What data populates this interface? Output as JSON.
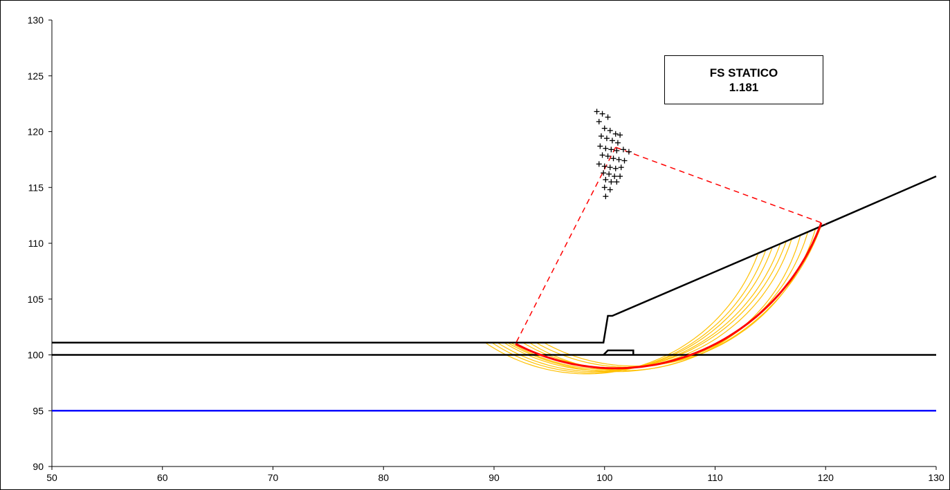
{
  "chart_data": {
    "type": "scatter",
    "title": "",
    "xlabel": "",
    "ylabel": "",
    "xlim": [
      50,
      130
    ],
    "ylim": [
      90,
      130
    ],
    "xticks": [
      50,
      60,
      70,
      80,
      90,
      100,
      110,
      120,
      130
    ],
    "yticks": [
      90,
      95,
      100,
      105,
      110,
      115,
      120,
      125,
      130
    ],
    "grid": false,
    "legend": "none",
    "annotation": {
      "line1": "FS  STATICO",
      "line2": "1.181"
    },
    "colors": {
      "profile": "#000000",
      "water_table": "#0000ff",
      "critical_surface": "#ff0000",
      "trial_surfaces": "#ffc000",
      "radius_lines": "#ff0000",
      "centers": "#000000"
    },
    "ground_profile": [
      [
        50,
        101.1
      ],
      [
        99.9,
        101.1
      ],
      [
        100.3,
        103.5
      ],
      [
        100.7,
        103.5
      ],
      [
        120,
        111.7
      ],
      [
        130,
        116
      ]
    ],
    "wall_base": [
      [
        99.9,
        100
      ],
      [
        100.3,
        100.4
      ],
      [
        102.6,
        100.4
      ],
      [
        102.6,
        100
      ]
    ],
    "lower_boundary": [
      [
        50,
        100
      ],
      [
        130,
        100
      ]
    ],
    "water_table": [
      [
        50,
        95
      ],
      [
        130,
        95
      ]
    ],
    "critical_surface": {
      "center": [
        101,
        118.6
      ],
      "radius": 19.8,
      "entry": [
        92,
        101.1
      ],
      "exit": [
        120,
        111.7
      ]
    },
    "trial_surfaces": [
      {
        "entry": [
          89.2,
          101.1
        ],
        "exit": [
          114.0,
          109.2
        ],
        "depth": 98.3
      },
      {
        "entry": [
          89.8,
          101.1
        ],
        "exit": [
          114.6,
          109.4
        ],
        "depth": 98.4
      },
      {
        "entry": [
          90.3,
          101.1
        ],
        "exit": [
          115.2,
          109.7
        ],
        "depth": 98.5
      },
      {
        "entry": [
          90.9,
          101.1
        ],
        "exit": [
          115.8,
          109.9
        ],
        "depth": 98.6
      },
      {
        "entry": [
          91.5,
          101.1
        ],
        "exit": [
          116.4,
          110.2
        ],
        "depth": 98.7
      },
      {
        "entry": [
          92.6,
          101.1
        ],
        "exit": [
          117.0,
          110.5
        ],
        "depth": 98.8
      },
      {
        "entry": [
          93.2,
          101.1
        ],
        "exit": [
          117.7,
          110.8
        ],
        "depth": 98.6
      },
      {
        "entry": [
          93.8,
          101.1
        ],
        "exit": [
          118.3,
          111.0
        ],
        "depth": 98.9
      },
      {
        "entry": [
          94.5,
          101.1
        ],
        "exit": [
          119.0,
          111.3
        ],
        "depth": 99.0
      },
      {
        "entry": [
          91.2,
          101.1
        ],
        "exit": [
          119.6,
          111.5
        ],
        "depth": 98.5
      }
    ],
    "centers": [
      [
        99.3,
        121.8
      ],
      [
        99.8,
        121.6
      ],
      [
        100.3,
        121.3
      ],
      [
        99.5,
        120.9
      ],
      [
        100.0,
        120.3
      ],
      [
        100.5,
        120.1
      ],
      [
        101.0,
        119.8
      ],
      [
        101.4,
        119.7
      ],
      [
        99.7,
        119.6
      ],
      [
        100.2,
        119.4
      ],
      [
        100.7,
        119.2
      ],
      [
        101.2,
        119.0
      ],
      [
        99.6,
        118.7
      ],
      [
        100.1,
        118.5
      ],
      [
        100.6,
        118.4
      ],
      [
        101.1,
        118.3
      ],
      [
        101.7,
        118.4
      ],
      [
        102.2,
        118.2
      ],
      [
        99.8,
        117.9
      ],
      [
        100.3,
        117.8
      ],
      [
        100.8,
        117.6
      ],
      [
        101.3,
        117.5
      ],
      [
        101.8,
        117.4
      ],
      [
        99.5,
        117.1
      ],
      [
        100.0,
        116.9
      ],
      [
        100.5,
        116.8
      ],
      [
        101.0,
        116.7
      ],
      [
        101.5,
        116.8
      ],
      [
        99.9,
        116.3
      ],
      [
        100.4,
        116.2
      ],
      [
        100.9,
        116.0
      ],
      [
        101.4,
        116.0
      ],
      [
        100.1,
        115.7
      ],
      [
        100.6,
        115.5
      ],
      [
        101.1,
        115.5
      ],
      [
        100.0,
        115.0
      ],
      [
        100.5,
        114.8
      ],
      [
        100.1,
        114.2
      ]
    ]
  }
}
